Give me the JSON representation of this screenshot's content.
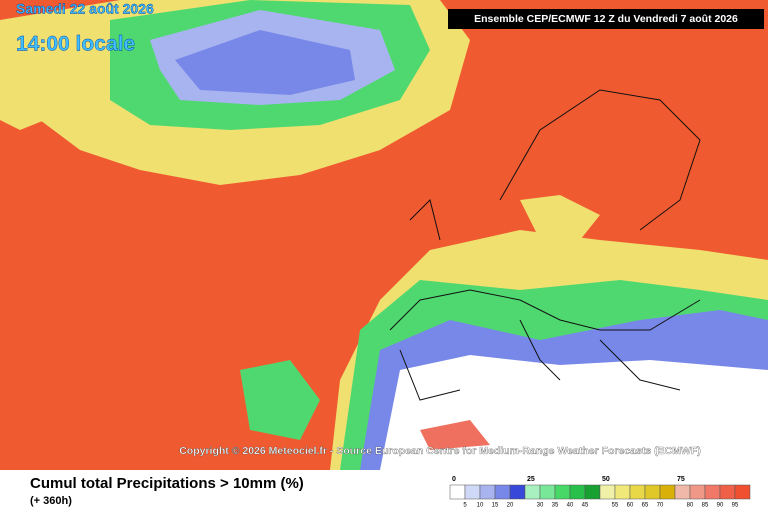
{
  "header": {
    "date": "Samedi 22 août 2026",
    "time": "14:00 locale",
    "run": "Ensemble CEP/ECMWF 12 Z du Vendredi 7 août 2026"
  },
  "copyright": "Copyright © 2026 Meteociel.fr - Source European Centre for Medium-Range Weather Forecasts (ECMWF)",
  "footer": {
    "title": "Cumul total Precipitations > 10mm (%)",
    "lead": "(+ 360h)"
  },
  "legend": {
    "colors": [
      "#ffffff",
      "#d0d8f8",
      "#a8b4f0",
      "#7888e8",
      "#3848d8",
      "#a8f0c0",
      "#78e898",
      "#48d868",
      "#28c048",
      "#18a030",
      "#f0f0a8",
      "#f0e878",
      "#e8d848",
      "#e0c828",
      "#d8b008",
      "#f0b8a8",
      "#f09888",
      "#f07868",
      "#f06048",
      "#f05030"
    ],
    "step": 5,
    "top_labels": [
      0,
      25,
      50,
      75
    ],
    "bottom_labels": [
      5,
      10,
      15,
      20,
      30,
      35,
      40,
      45,
      55,
      60,
      65,
      70,
      80,
      85,
      90,
      95
    ]
  }
}
